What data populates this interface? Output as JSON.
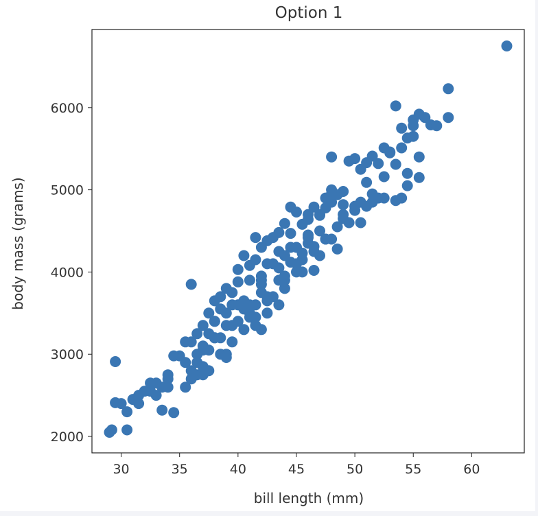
{
  "chart_data": {
    "type": "scatter",
    "title": "Option 1",
    "xlabel": "bill length (mm)",
    "ylabel": "body mass (grams)",
    "xlim": [
      27.5,
      64.5
    ],
    "ylim": [
      1800,
      6950
    ],
    "xticks": [
      30,
      35,
      40,
      45,
      50,
      55,
      60
    ],
    "yticks": [
      2000,
      3000,
      4000,
      5000,
      6000
    ],
    "grid": false,
    "legend": "none",
    "color": "#3a76b3",
    "x": [
      63.0,
      58.0,
      58.0,
      53.5,
      55.5,
      56.5,
      55.0,
      57.0,
      54.0,
      54.5,
      55.0,
      56.0,
      52.5,
      53.0,
      54.0,
      55.5,
      53.5,
      54.5,
      52.0,
      51.5,
      50.5,
      49.5,
      50.0,
      51.0,
      52.5,
      53.5,
      54.0,
      50.5,
      51.0,
      49.0,
      48.5,
      47.5,
      48.0,
      49.0,
      47.5,
      46.5,
      47.0,
      48.0,
      46.0,
      45.0,
      44.5,
      47.0,
      46.0,
      45.5,
      44.0,
      44.5,
      43.5,
      43.0,
      42.5,
      43.5,
      42.0,
      41.5,
      44.5,
      45.5,
      46.5,
      47.5,
      48.5,
      47.0,
      46.0,
      45.0,
      44.0,
      43.0,
      42.0,
      41.0,
      40.5,
      41.5,
      42.5,
      43.5,
      44.5,
      45.5,
      46.5,
      42.0,
      41.0,
      40.0,
      39.5,
      39.0,
      38.5,
      40.5,
      41.5,
      42.5,
      43.5,
      42.5,
      41.5,
      40.5,
      39.5,
      38.5,
      37.5,
      37.0,
      38.0,
      39.0,
      40.0,
      41.0,
      42.0,
      36.5,
      37.5,
      38.5,
      39.5,
      40.5,
      41.5,
      36.0,
      37.0,
      38.0,
      39.0,
      36.5,
      37.5,
      38.5,
      35.5,
      36.0,
      37.0,
      36.5,
      35.0,
      36.0,
      34.5,
      39.0,
      37.5,
      36.5,
      34.0,
      33.0,
      33.5,
      32.5,
      34.0,
      33.0,
      32.0,
      31.5,
      31.0,
      30.0,
      29.5,
      29.5,
      30.5,
      29.0,
      29.2,
      33.5,
      34.5,
      35.5,
      37.0,
      38.0,
      36.0,
      40.0,
      42.0,
      44.0,
      45.0,
      46.0,
      47.0,
      48.0,
      49.0,
      50.0,
      51.5,
      52.0,
      50.0,
      48.5,
      47.5,
      45.5,
      44.0,
      43.0,
      41.0,
      39.0,
      38.0,
      40.0,
      42.0,
      43.5,
      45.0,
      46.5,
      48.0,
      49.5,
      51.0,
      52.5,
      54.5,
      55.5,
      46.0,
      44.0,
      42.5,
      41.0,
      39.5,
      38.0,
      37.0,
      35.5,
      34.0,
      32.5,
      31.5,
      30.5,
      48.0,
      49.0,
      50.5,
      51.5,
      53.0,
      55.0
    ],
    "y": [
      6750,
      6230,
      5880,
      6020,
      5920,
      5790,
      5850,
      5780,
      5750,
      5630,
      5650,
      5880,
      5510,
      5460,
      5510,
      5400,
      5310,
      5200,
      5320,
      5410,
      5250,
      5350,
      5380,
      5330,
      5160,
      4870,
      4900,
      4850,
      5090,
      4980,
      4940,
      4900,
      4950,
      4820,
      4780,
      4790,
      4690,
      4850,
      4640,
      4730,
      4790,
      4500,
      4700,
      4580,
      4590,
      4470,
      4480,
      4420,
      4380,
      4250,
      4300,
      4420,
      4300,
      4150,
      4310,
      4400,
      4280,
      4200,
      4420,
      4300,
      4200,
      4100,
      3950,
      4080,
      4200,
      4150,
      4100,
      4050,
      4120,
      4230,
      4020,
      3850,
      3900,
      3880,
      3750,
      3800,
      3700,
      3650,
      3600,
      3700,
      3600,
      3500,
      3450,
      3550,
      3600,
      3550,
      3500,
      3350,
      3400,
      3350,
      3400,
      3450,
      3300,
      3250,
      3250,
      3200,
      3150,
      3300,
      3350,
      3150,
      3100,
      3200,
      3000,
      3000,
      3050,
      3000,
      3150,
      2800,
      2850,
      2750,
      2980,
      2700,
      2980,
      2960,
      2800,
      2900,
      2700,
      2650,
      2600,
      2550,
      2600,
      2500,
      2550,
      2500,
      2450,
      2400,
      2410,
      2910,
      2080,
      2050,
      2080,
      2320,
      2290,
      2600,
      2750,
      3650,
      3850,
      4030,
      3900,
      3900,
      4000,
      4450,
      4700,
      5400,
      4650,
      4800,
      4850,
      4900,
      4750,
      4550,
      4400,
      4000,
      3800,
      3700,
      3600,
      3500,
      3400,
      3600,
      3750,
      3900,
      4100,
      4250,
      4400,
      4600,
      4800,
      4900,
      5050,
      5150,
      4350,
      3950,
      3650,
      3500,
      3350,
      3200,
      3050,
      2900,
      2750,
      2650,
      2400,
      2300,
      5000,
      4700,
      4600,
      4950,
      5450,
      5780
    ]
  }
}
